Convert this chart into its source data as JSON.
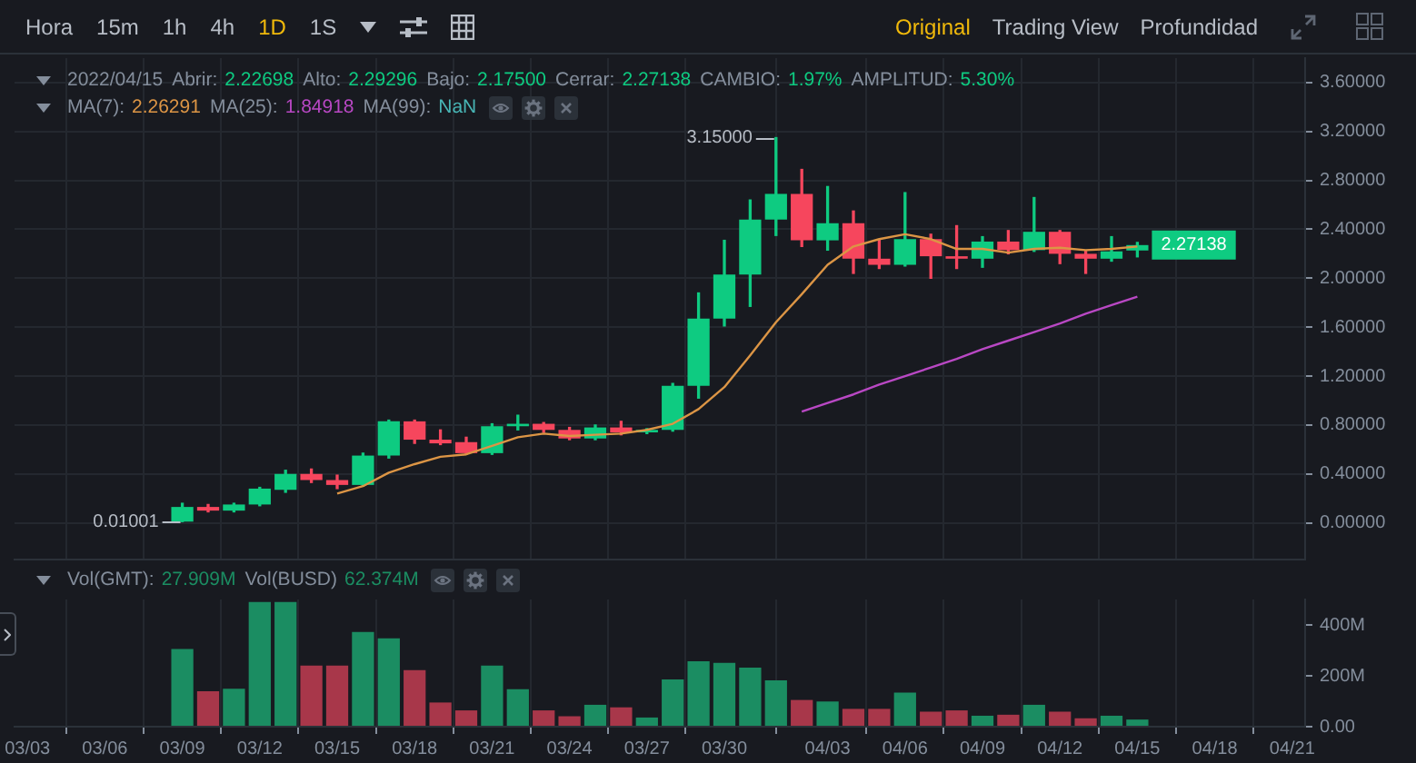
{
  "chart_data": [
    {
      "type": "other",
      "annotations": [
        "Hora",
        "15m",
        "1h",
        "4h",
        "1D",
        "1S",
        "Original",
        "Trading View",
        "Profundidad"
      ]
    },
    {
      "type": "candlestick",
      "x": [
        "2022-03-09",
        "2022-03-10",
        "2022-03-11",
        "2022-03-12",
        "2022-03-13",
        "2022-03-14",
        "2022-03-15",
        "2022-03-16",
        "2022-03-17",
        "2022-03-18",
        "2022-03-19",
        "2022-03-20",
        "2022-03-21",
        "2022-03-22",
        "2022-03-23",
        "2022-03-24",
        "2022-03-25",
        "2022-03-26",
        "2022-03-27",
        "2022-03-28",
        "2022-03-29",
        "2022-03-30",
        "2022-03-31",
        "2022-04-01",
        "2022-04-02",
        "2022-04-03",
        "2022-04-04",
        "2022-04-05",
        "2022-04-06",
        "2022-04-07",
        "2022-04-08",
        "2022-04-09",
        "2022-04-10",
        "2022-04-11",
        "2022-04-12",
        "2022-04-13",
        "2022-04-14",
        "2022-04-15"
      ],
      "ohlc": [
        [
          0.01001,
          0.16,
          0.01001,
          0.13
        ],
        [
          0.13,
          0.15,
          0.09,
          0.1
        ],
        [
          0.1,
          0.16,
          0.09,
          0.15
        ],
        [
          0.15,
          0.29,
          0.14,
          0.28
        ],
        [
          0.27,
          0.43,
          0.25,
          0.4
        ],
        [
          0.4,
          0.44,
          0.33,
          0.35
        ],
        [
          0.35,
          0.39,
          0.28,
          0.31
        ],
        [
          0.31,
          0.57,
          0.3,
          0.55
        ],
        [
          0.55,
          0.84,
          0.53,
          0.83
        ],
        [
          0.83,
          0.84,
          0.65,
          0.68
        ],
        [
          0.68,
          0.76,
          0.64,
          0.65
        ],
        [
          0.66,
          0.7,
          0.56,
          0.57
        ],
        [
          0.57,
          0.81,
          0.56,
          0.79
        ],
        [
          0.79,
          0.88,
          0.76,
          0.81
        ],
        [
          0.81,
          0.82,
          0.74,
          0.76
        ],
        [
          0.76,
          0.78,
          0.68,
          0.69
        ],
        [
          0.69,
          0.8,
          0.68,
          0.78
        ],
        [
          0.78,
          0.83,
          0.72,
          0.74
        ],
        [
          0.74,
          0.77,
          0.73,
          0.76
        ],
        [
          0.76,
          1.14,
          0.75,
          1.12
        ],
        [
          1.12,
          1.88,
          1.02,
          1.67
        ],
        [
          1.67,
          2.31,
          1.61,
          2.03
        ],
        [
          2.03,
          2.64,
          1.77,
          2.48
        ],
        [
          2.48,
          3.15,
          2.35,
          2.69
        ],
        [
          2.69,
          2.89,
          2.26,
          2.31
        ],
        [
          2.31,
          2.75,
          2.23,
          2.45
        ],
        [
          2.45,
          2.55,
          2.04,
          2.16
        ],
        [
          2.16,
          2.31,
          2.08,
          2.11
        ],
        [
          2.11,
          2.7,
          2.1,
          2.32
        ],
        [
          2.32,
          2.36,
          2.0,
          2.18
        ],
        [
          2.18,
          2.43,
          2.08,
          2.16
        ],
        [
          2.16,
          2.34,
          2.09,
          2.3
        ],
        [
          2.3,
          2.39,
          2.2,
          2.23
        ],
        [
          2.23,
          2.66,
          2.22,
          2.38
        ],
        [
          2.38,
          2.39,
          2.12,
          2.2
        ],
        [
          2.2,
          2.22,
          2.04,
          2.16
        ],
        [
          2.16,
          2.34,
          2.14,
          2.22
        ],
        [
          2.22698,
          2.29296,
          2.175,
          2.27138
        ]
      ],
      "colors": [
        "#0ecb81",
        "#f6465d",
        "#0ecb81",
        "#0ecb81",
        "#0ecb81",
        "#f6465d",
        "#f6465d",
        "#0ecb81",
        "#0ecb81",
        "#f6465d",
        "#f6465d",
        "#f6465d",
        "#0ecb81",
        "#0ecb81",
        "#f6465d",
        "#f6465d",
        "#0ecb81",
        "#f6465d",
        "#0ecb81",
        "#0ecb81",
        "#0ecb81",
        "#0ecb81",
        "#0ecb81",
        "#0ecb81",
        "#f6465d",
        "#0ecb81",
        "#f6465d",
        "#f6465d",
        "#0ecb81",
        "#f6465d",
        "#f6465d",
        "#0ecb81",
        "#f6465d",
        "#0ecb81",
        "#f6465d",
        "#f6465d",
        "#0ecb81",
        "#0ecb81"
      ],
      "series": [
        {
          "type": "line",
          "color": "#dc9545",
          "values": [
            null,
            null,
            null,
            null,
            null,
            null,
            0.24,
            0.3,
            0.41,
            0.48,
            0.54,
            0.56,
            0.63,
            0.7,
            0.73,
            0.71,
            0.72,
            0.73,
            0.76,
            0.81,
            0.93,
            1.11,
            1.37,
            1.64,
            1.87,
            2.11,
            2.26,
            2.32,
            2.36,
            2.32,
            2.24,
            2.24,
            2.21,
            2.24,
            2.25,
            2.23,
            2.24,
            2.26
          ]
        },
        {
          "type": "line",
          "color": "#b948c4",
          "values": [
            null,
            null,
            null,
            null,
            null,
            null,
            null,
            null,
            null,
            null,
            null,
            null,
            null,
            null,
            null,
            null,
            null,
            null,
            null,
            null,
            null,
            null,
            null,
            null,
            0.91,
            0.98,
            1.05,
            1.13,
            1.2,
            1.27,
            1.34,
            1.42,
            1.49,
            1.56,
            1.63,
            1.71,
            1.78,
            1.85
          ]
        },
        {
          "type": "line",
          "color": "#48b5b5",
          "values": [
            null,
            null,
            null,
            null,
            null,
            null,
            null,
            null,
            null,
            null,
            null,
            null,
            null,
            null,
            null,
            null,
            null,
            null,
            null,
            null,
            null,
            null,
            null,
            null,
            null,
            null,
            null,
            null,
            null,
            null,
            null,
            null,
            null,
            null,
            null,
            null,
            null,
            null
          ]
        }
      ],
      "xlim": [
        "2022-03-02T12:00",
        "2022-04-21T12:00"
      ],
      "xticks": [
        {
          "value": "2022-03-03",
          "label": null
        },
        {
          "value": "2022-03-06",
          "label": null
        },
        {
          "value": "2022-03-09",
          "label": null
        },
        {
          "value": "2022-03-12",
          "label": null
        },
        {
          "value": "2022-03-15",
          "label": null
        },
        {
          "value": "2022-03-18",
          "label": null
        },
        {
          "value": "2022-03-21",
          "label": null
        },
        {
          "value": "2022-03-24",
          "label": null
        },
        {
          "value": "2022-03-27",
          "label": null
        },
        {
          "value": "2022-03-30",
          "label": null
        },
        {
          "value": "2022-04-03",
          "label": null
        },
        {
          "value": "2022-04-06",
          "label": null
        },
        {
          "value": "2022-04-09",
          "label": null
        },
        {
          "value": "2022-04-12",
          "label": null
        },
        {
          "value": "2022-04-15",
          "label": null
        },
        {
          "value": "2022-04-18",
          "label": null
        },
        {
          "value": "2022-04-21",
          "label": null
        }
      ],
      "ylim": [
        -0.3,
        3.8
      ],
      "yticks": [
        {
          "value": 0,
          "label": "0.00000"
        },
        {
          "value": 0.4,
          "label": "0.40000"
        },
        {
          "value": 0.8,
          "label": "0.80000"
        },
        {
          "value": 1.2,
          "label": "1.20000"
        },
        {
          "value": 1.6,
          "label": "1.60000"
        },
        {
          "value": 2,
          "label": "2.00000"
        },
        {
          "value": 2.4,
          "label": "2.40000"
        },
        {
          "value": 2.8,
          "label": "2.80000"
        },
        {
          "value": 3.2,
          "label": "3.20000"
        },
        {
          "value": 3.6,
          "label": "3.60000"
        }
      ],
      "grid": true,
      "tick_labels": "y",
      "annotations": [
        "2022/04/15",
        "Abrir: 2.22698",
        "Alto: 2.29296",
        "Bajo: 2.17500",
        "Cerrar: 2.27138",
        "CAMBIO: 1.97%",
        "AMPLITUD: 5.30%",
        "MA(7): 2.26291",
        "MA(25): 1.84918",
        "MA(99): NaN",
        {
          "text": "3.15000",
          "x": "2022-04-01",
          "y": 3.15
        },
        {
          "text": "0.01001",
          "x": "2022-03-09",
          "y": 0.01001
        },
        {
          "text": "2.27138",
          "x": "2022-04-15",
          "y": 2.27138
        }
      ]
    },
    {
      "type": "bar",
      "x": [
        "2022-03-09",
        "2022-03-10",
        "2022-03-11",
        "2022-03-12",
        "2022-03-13",
        "2022-03-14",
        "2022-03-15",
        "2022-03-16",
        "2022-03-17",
        "2022-03-18",
        "2022-03-19",
        "2022-03-20",
        "2022-03-21",
        "2022-03-22",
        "2022-03-23",
        "2022-03-24",
        "2022-03-25",
        "2022-03-26",
        "2022-03-27",
        "2022-03-28",
        "2022-03-29",
        "2022-03-30",
        "2022-03-31",
        "2022-04-01",
        "2022-04-02",
        "2022-04-03",
        "2022-04-04",
        "2022-04-05",
        "2022-04-06",
        "2022-04-07",
        "2022-04-08",
        "2022-04-09",
        "2022-04-10",
        "2022-04-11",
        "2022-04-12",
        "2022-04-13",
        "2022-04-14",
        "2022-04-15"
      ],
      "values": [
        305,
        139,
        149,
        490,
        490,
        240,
        240,
        372,
        347,
        222,
        95,
        64,
        240,
        147,
        64,
        41,
        86,
        76,
        36,
        186,
        257,
        251,
        232,
        182,
        105,
        99,
        70,
        70,
        134,
        59,
        64,
        43,
        47,
        86,
        59,
        33,
        43,
        28
      ],
      "colors": [
        "#1b8d62",
        "#a8374a",
        "#1b8d62",
        "#1b8d62",
        "#1b8d62",
        "#a8374a",
        "#a8374a",
        "#1b8d62",
        "#1b8d62",
        "#a8374a",
        "#a8374a",
        "#a8374a",
        "#1b8d62",
        "#1b8d62",
        "#a8374a",
        "#a8374a",
        "#1b8d62",
        "#a8374a",
        "#1b8d62",
        "#1b8d62",
        "#1b8d62",
        "#1b8d62",
        "#1b8d62",
        "#1b8d62",
        "#a8374a",
        "#1b8d62",
        "#a8374a",
        "#a8374a",
        "#1b8d62",
        "#a8374a",
        "#a8374a",
        "#1b8d62",
        "#a8374a",
        "#1b8d62",
        "#a8374a",
        "#a8374a",
        "#1b8d62",
        "#1b8d62"
      ],
      "xlim": [
        "2022-03-02T12:00",
        "2022-04-21T12:00"
      ],
      "xticks": [
        {
          "value": "2022-03-03",
          "label": "03/03"
        },
        {
          "value": "2022-03-06",
          "label": "03/06"
        },
        {
          "value": "2022-03-09",
          "label": "03/09"
        },
        {
          "value": "2022-03-12",
          "label": "03/12"
        },
        {
          "value": "2022-03-15",
          "label": "03/15"
        },
        {
          "value": "2022-03-18",
          "label": "03/18"
        },
        {
          "value": "2022-03-21",
          "label": "03/21"
        },
        {
          "value": "2022-03-24",
          "label": "03/24"
        },
        {
          "value": "2022-03-27",
          "label": "03/27"
        },
        {
          "value": "2022-03-30",
          "label": "03/30"
        },
        {
          "value": "2022-04-03",
          "label": "04/03"
        },
        {
          "value": "2022-04-06",
          "label": "04/06"
        },
        {
          "value": "2022-04-09",
          "label": "04/09"
        },
        {
          "value": "2022-04-12",
          "label": "04/12"
        },
        {
          "value": "2022-04-15",
          "label": "04/15"
        },
        {
          "value": "2022-04-18",
          "label": "04/18"
        },
        {
          "value": "2022-04-21",
          "label": "04/21"
        }
      ],
      "ylim": [
        0,
        500
      ],
      "yticks": [
        {
          "value": 0,
          "label": "0.00"
        },
        {
          "value": 200,
          "label": "200M"
        },
        {
          "value": 400,
          "label": "400M"
        }
      ],
      "grid": "x",
      "annotations": [
        "Vol(GMT): 27.909M",
        "Vol(BUSD) 62.374M"
      ]
    }
  ]
}
